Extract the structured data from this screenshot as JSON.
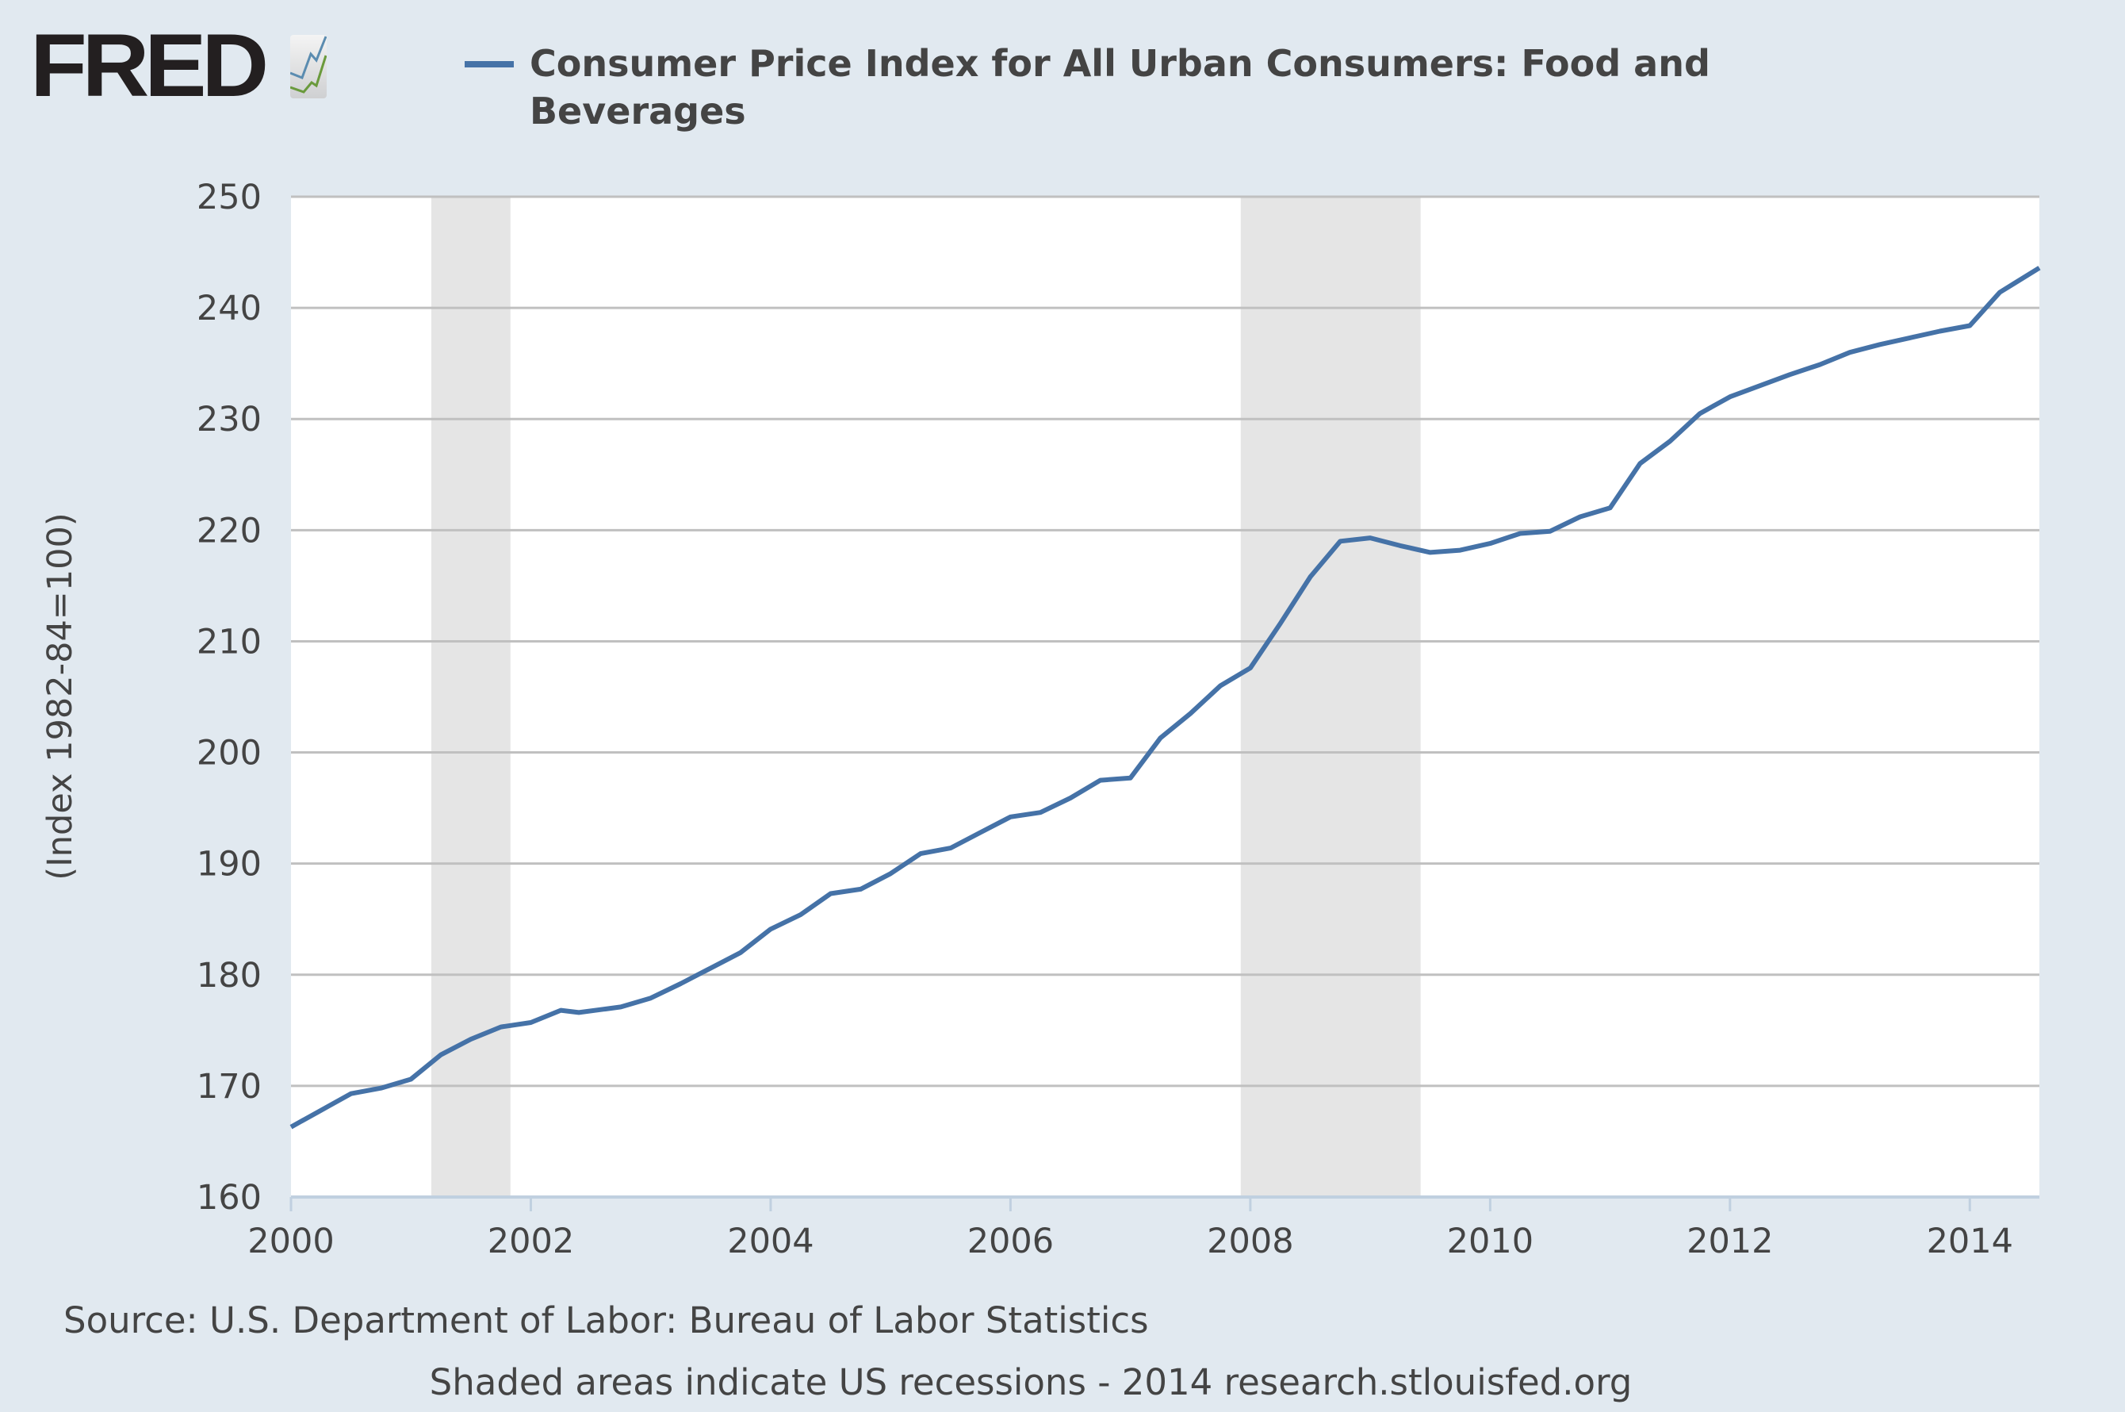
{
  "logo": {
    "text": "FRED"
  },
  "chart_data": {
    "type": "line",
    "title": "Consumer Price Index for All Urban Consumers: Food and Beverages",
    "xlabel": "",
    "ylabel": "(Index 1982-84=100)",
    "xlim": [
      2000,
      2014.58
    ],
    "ylim": [
      160,
      250
    ],
    "yticks": [
      "160",
      "170",
      "180",
      "190",
      "200",
      "210",
      "220",
      "230",
      "240",
      "250"
    ],
    "xticks": [
      "2000",
      "2002",
      "2004",
      "2006",
      "2008",
      "2010",
      "2012",
      "2014"
    ],
    "grid": true,
    "legend_placement": "top",
    "recessions": [
      [
        2001.17,
        2001.83
      ],
      [
        2007.92,
        2009.42
      ]
    ],
    "series": [
      {
        "name": "Consumer Price Index for All Urban Consumers: Food and Beverages",
        "color": "#4572a7",
        "x": [
          2000.0,
          2000.25,
          2000.5,
          2000.75,
          2001.0,
          2001.25,
          2001.5,
          2001.75,
          2002.0,
          2002.25,
          2002.4,
          2002.75,
          2003.0,
          2003.25,
          2003.5,
          2003.75,
          2004.0,
          2004.25,
          2004.5,
          2004.75,
          2005.0,
          2005.25,
          2005.5,
          2005.75,
          2006.0,
          2006.25,
          2006.5,
          2006.75,
          2007.0,
          2007.25,
          2007.5,
          2007.75,
          2008.0,
          2008.25,
          2008.5,
          2008.75,
          2009.0,
          2009.25,
          2009.5,
          2009.75,
          2010.0,
          2010.25,
          2010.5,
          2010.75,
          2011.0,
          2011.25,
          2011.5,
          2011.75,
          2012.0,
          2012.25,
          2012.5,
          2012.75,
          2013.0,
          2013.25,
          2013.5,
          2013.75,
          2014.0,
          2014.25,
          2014.58
        ],
        "y": [
          166.3,
          167.8,
          169.3,
          169.8,
          170.6,
          172.8,
          174.2,
          175.3,
          175.7,
          176.8,
          176.6,
          177.1,
          177.9,
          179.2,
          180.6,
          182.0,
          184.1,
          185.4,
          187.3,
          187.7,
          189.1,
          190.9,
          191.4,
          192.8,
          194.2,
          194.6,
          195.9,
          197.5,
          197.7,
          201.3,
          203.5,
          206.0,
          207.6,
          211.6,
          215.8,
          219.0,
          219.3,
          218.6,
          218.0,
          218.2,
          218.8,
          219.7,
          219.9,
          221.2,
          222.0,
          226.0,
          228.0,
          230.5,
          232.0,
          233.0,
          234.0,
          234.9,
          236.0,
          236.7,
          237.3,
          237.9,
          238.4,
          241.4,
          243.6
        ]
      }
    ]
  },
  "footer": {
    "source": "Source: U.S. Department of Labor: Bureau of Labor Statistics",
    "note": "Shaded areas indicate US recessions - 2014 research.stlouisfed.org"
  }
}
